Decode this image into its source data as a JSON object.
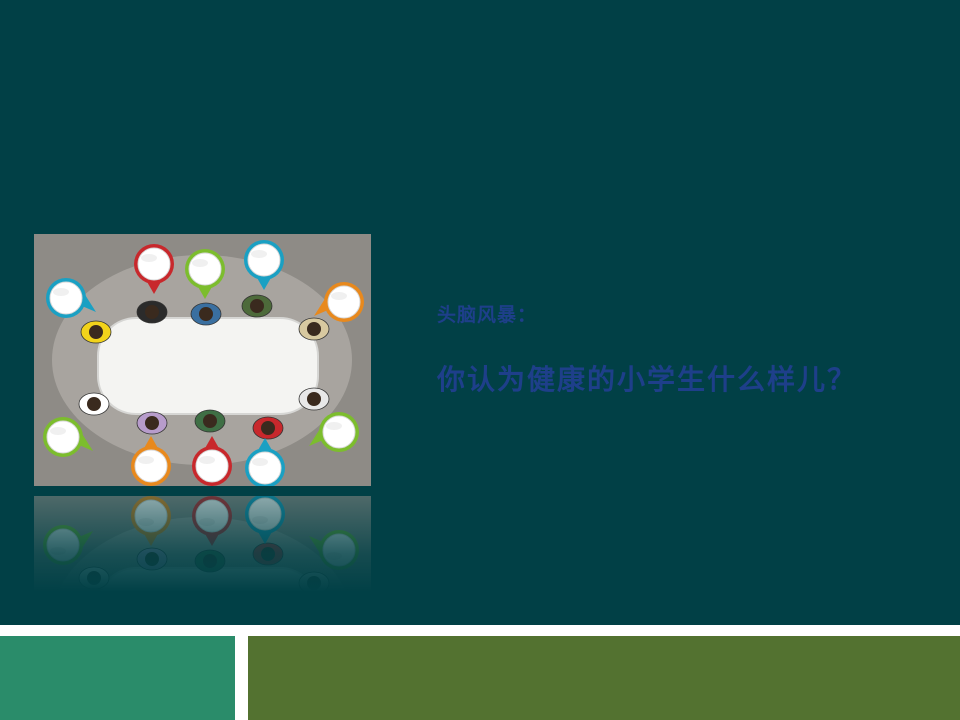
{
  "slide": {
    "subtitle": "头脑风暴：",
    "question": "你认为健康的小学生什么样儿？"
  },
  "colors": {
    "background": "#014046",
    "band_left": "#2a8c6a",
    "band_right": "#537230",
    "text": "#1e3f8a",
    "picture_bg": "#8e8b86",
    "table": "#f4f4f2",
    "pin_red": "#c8282c",
    "pin_green": "#7cbd2d",
    "pin_blue": "#1aa0c3",
    "pin_orange": "#e8891d"
  },
  "picture": {
    "pins": [
      "blue",
      "red",
      "green",
      "blue",
      "orange",
      "green",
      "orange",
      "red",
      "blue",
      "green"
    ],
    "people": 10
  }
}
